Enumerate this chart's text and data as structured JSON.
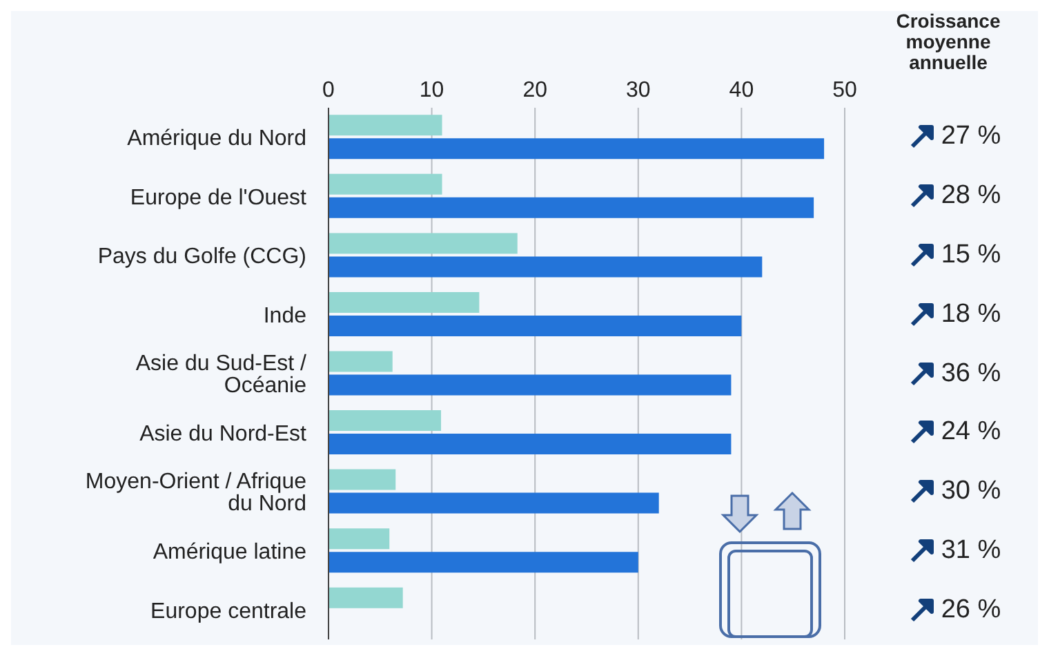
{
  "chart_data": {
    "type": "bar",
    "orientation": "horizontal",
    "categories": [
      "Amérique du Nord",
      "Europe de l'Ouest",
      "Pays du Golfe (CCG)",
      "Inde",
      "Asie du Sud-Est / Océanie",
      "Asie du Nord-Est",
      "Moyen-Orient / Afrique du Nord",
      "Amérique latine",
      "Europe centrale"
    ],
    "series": [
      {
        "color": "#93d7d1",
        "values": [
          11,
          11,
          18.3,
          14.6,
          6.2,
          10.9,
          6.5,
          5.9,
          7.2
        ]
      },
      {
        "color": "#2374d9",
        "values": [
          48,
          47,
          42,
          40,
          39,
          39,
          32,
          30,
          null
        ]
      }
    ],
    "xlim": [
      0,
      50
    ],
    "xticks": [
      0,
      10,
      20,
      30,
      40,
      50
    ],
    "grid": "x",
    "legend": false,
    "annotations": [
      "Croissance moyenne annuelle",
      "27 %",
      "28 %",
      "15 %",
      "18 %",
      "36 %",
      "24 %",
      "30 %",
      "31 %",
      "26 %"
    ]
  }
}
